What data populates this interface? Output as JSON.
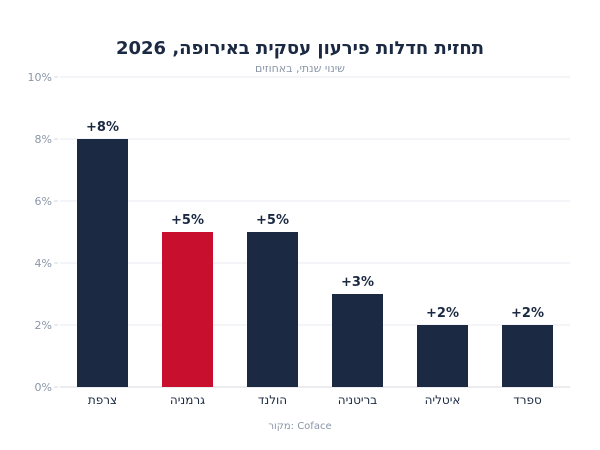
{
  "chart_data": {
    "type": "bar",
    "title": "תחזית חדלות פירעון עסקית באירופה, 2026",
    "subtitle": "שינוי שנתי, באחוזים",
    "source": "מקור: Coface",
    "categories": [
      "צרפת",
      "גרמניה",
      "הולנד",
      "בריטניה",
      "איטליה",
      "ספרד"
    ],
    "values": [
      8,
      5,
      5,
      3,
      2,
      2
    ],
    "data_labels": [
      "+8%",
      "+5%",
      "+5%",
      "+3%",
      "+2%",
      "+2%"
    ],
    "y_ticks": [
      "0%",
      "2%",
      "4%",
      "6%",
      "8%",
      "10%"
    ],
    "ylim": [
      0,
      10
    ],
    "grid": true,
    "colors": {
      "default": "#1b2a42",
      "highlight": "#c8102e",
      "highlight_category": "גרמניה"
    }
  }
}
